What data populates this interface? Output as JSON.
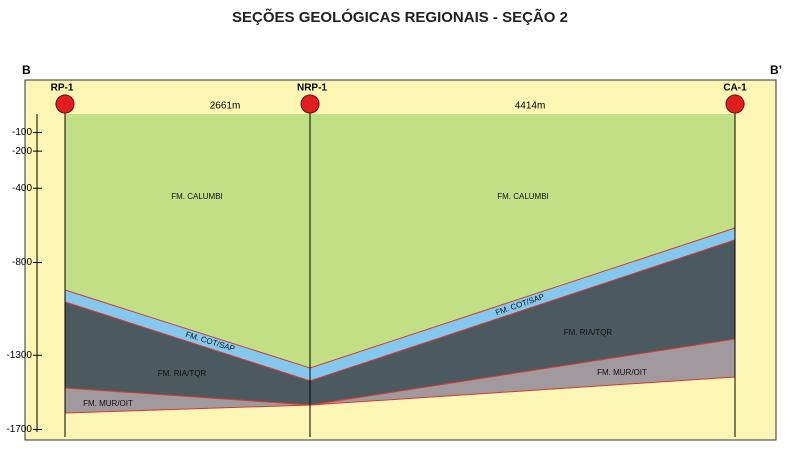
{
  "title": "SEÇÕES GEOLÓGICAS REGIONAIS - SEÇÃO 2",
  "section": {
    "start": "B",
    "end": "B’"
  },
  "wells": [
    "RP-1",
    "NRP-1",
    "CA-1"
  ],
  "distances": [
    "2661m",
    "4414m"
  ],
  "depth_axis": {
    "ticks": [
      -100,
      -200,
      -400,
      -800,
      -1300,
      -1700
    ],
    "lim": [
      0,
      -1700
    ]
  },
  "formation_labels": [
    "FM. CALUMBI",
    "FM. CALUMBI",
    "FM. COT/SAP",
    "FM. COT/SAP",
    "FM. RIA/TQR",
    "FM. RIA/TQR",
    "FM. MUR/OIT",
    "FM. MUR/OIT"
  ]
}
